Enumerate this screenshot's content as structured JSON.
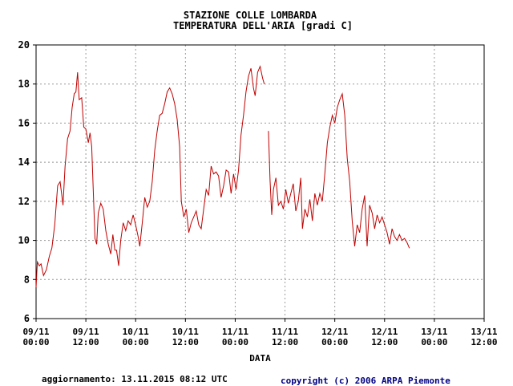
{
  "colors": {
    "series": "#c00000",
    "grid": "#999999",
    "axis": "#000000",
    "footer_right": "#000080"
  },
  "footer": {
    "updated": "aggiornamento: 13.11.2015 08:12 UTC",
    "copyright": "copyright (c) 2006 ARPA Piemonte"
  },
  "chart_data": {
    "type": "line",
    "title": "STAZIONE COLLE LOMBARDA",
    "subtitle": "TEMPERATURA DELL'ARIA [gradi C]",
    "xlabel": "DATA",
    "ylabel": "",
    "ylim": [
      6,
      20
    ],
    "yticks": [
      6,
      8,
      10,
      12,
      14,
      16,
      18,
      20
    ],
    "xlim": [
      0,
      108
    ],
    "xticks": [
      {
        "x": 0,
        "line1": "09/11",
        "line2": "00:00"
      },
      {
        "x": 12,
        "line1": "09/11",
        "line2": "12:00"
      },
      {
        "x": 24,
        "line1": "10/11",
        "line2": "00:00"
      },
      {
        "x": 36,
        "line1": "10/11",
        "line2": "12:00"
      },
      {
        "x": 48,
        "line1": "11/11",
        "line2": "00:00"
      },
      {
        "x": 60,
        "line1": "11/11",
        "line2": "12:00"
      },
      {
        "x": 72,
        "line1": "12/11",
        "line2": "00:00"
      },
      {
        "x": 84,
        "line1": "12/11",
        "line2": "12:00"
      },
      {
        "x": 96,
        "line1": "13/11",
        "line2": "00:00"
      },
      {
        "x": 108,
        "line1": "13/11",
        "line2": "12:00"
      }
    ],
    "grid": true,
    "x_unit": "hours from 09/11 00:00",
    "segments": [
      [
        [
          0,
          7.6
        ],
        [
          0.3,
          8.9
        ],
        [
          0.8,
          8.7
        ],
        [
          1.2,
          8.8
        ],
        [
          1.8,
          8.2
        ],
        [
          2.5,
          8.5
        ],
        [
          3.2,
          9.2
        ],
        [
          3.8,
          9.6
        ],
        [
          4.5,
          10.8
        ],
        [
          5.2,
          12.8
        ],
        [
          5.8,
          13.0
        ],
        [
          6.5,
          11.8
        ],
        [
          7.0,
          13.8
        ],
        [
          7.6,
          15.2
        ],
        [
          8.2,
          15.6
        ],
        [
          8.7,
          16.8
        ],
        [
          9.2,
          17.5
        ],
        [
          9.6,
          17.6
        ],
        [
          10.0,
          18.6
        ],
        [
          10.4,
          17.2
        ],
        [
          11.0,
          17.3
        ],
        [
          11.5,
          15.8
        ],
        [
          12.0,
          15.7
        ],
        [
          12.6,
          15.0
        ],
        [
          13.0,
          15.5
        ],
        [
          13.4,
          14.8
        ],
        [
          13.8,
          12.5
        ],
        [
          14.2,
          10.1
        ],
        [
          14.6,
          9.8
        ],
        [
          15.0,
          11.4
        ],
        [
          15.6,
          11.9
        ],
        [
          16.2,
          11.6
        ],
        [
          16.8,
          10.5
        ],
        [
          17.4,
          9.8
        ],
        [
          18.0,
          9.3
        ],
        [
          18.5,
          10.3
        ],
        [
          19.0,
          9.5
        ],
        [
          19.4,
          9.5
        ],
        [
          19.9,
          8.7
        ],
        [
          20.4,
          10.0
        ],
        [
          21.0,
          10.9
        ],
        [
          21.6,
          10.5
        ],
        [
          22.2,
          11.0
        ],
        [
          22.8,
          10.8
        ],
        [
          23.4,
          11.3
        ],
        [
          24.0,
          10.8
        ],
        [
          24.6,
          10.2
        ],
        [
          25.0,
          9.7
        ],
        [
          25.6,
          10.9
        ],
        [
          26.2,
          12.2
        ],
        [
          26.8,
          11.7
        ],
        [
          27.4,
          12.0
        ],
        [
          28.0,
          13.0
        ],
        [
          28.6,
          14.6
        ],
        [
          29.2,
          15.6
        ],
        [
          29.8,
          16.4
        ],
        [
          30.4,
          16.5
        ],
        [
          31.0,
          17.0
        ],
        [
          31.6,
          17.6
        ],
        [
          32.2,
          17.8
        ],
        [
          32.8,
          17.5
        ],
        [
          33.4,
          17.0
        ],
        [
          34.0,
          16.2
        ],
        [
          34.6,
          14.8
        ],
        [
          35.0,
          12.0
        ],
        [
          35.6,
          11.2
        ],
        [
          36.2,
          11.6
        ],
        [
          36.8,
          10.4
        ],
        [
          37.4,
          10.9
        ],
        [
          38.0,
          11.2
        ],
        [
          38.6,
          11.5
        ],
        [
          39.2,
          10.8
        ],
        [
          39.8,
          10.6
        ],
        [
          40.4,
          11.6
        ],
        [
          41.0,
          12.6
        ],
        [
          41.6,
          12.3
        ],
        [
          42.2,
          13.8
        ],
        [
          42.8,
          13.4
        ],
        [
          43.4,
          13.5
        ],
        [
          44.0,
          13.3
        ],
        [
          44.6,
          12.2
        ],
        [
          45.2,
          12.8
        ],
        [
          45.8,
          13.6
        ],
        [
          46.4,
          13.5
        ],
        [
          47.0,
          12.4
        ],
        [
          47.6,
          13.4
        ],
        [
          48.2,
          12.6
        ],
        [
          48.8,
          13.6
        ],
        [
          49.4,
          15.4
        ],
        [
          50.0,
          16.4
        ],
        [
          50.6,
          17.6
        ],
        [
          51.2,
          18.4
        ],
        [
          51.8,
          18.8
        ],
        [
          52.4,
          17.8
        ],
        [
          52.8,
          17.4
        ],
        [
          53.4,
          18.6
        ],
        [
          54.0,
          18.9
        ],
        [
          54.6,
          18.3
        ],
        [
          55.0,
          18.0
        ]
      ],
      [
        [
          56.0,
          15.6
        ],
        [
          56.4,
          13.1
        ],
        [
          56.8,
          11.3
        ],
        [
          57.2,
          12.6
        ],
        [
          57.8,
          13.2
        ],
        [
          58.4,
          11.8
        ],
        [
          59.0,
          12.0
        ],
        [
          59.6,
          11.6
        ],
        [
          60.2,
          12.6
        ],
        [
          60.8,
          11.9
        ],
        [
          61.4,
          12.4
        ],
        [
          62.0,
          12.9
        ],
        [
          62.6,
          11.5
        ],
        [
          63.2,
          12.0
        ],
        [
          63.8,
          13.2
        ],
        [
          64.2,
          10.6
        ],
        [
          64.8,
          11.6
        ],
        [
          65.4,
          11.2
        ],
        [
          66.0,
          12.1
        ],
        [
          66.6,
          11.0
        ],
        [
          67.2,
          12.4
        ],
        [
          67.8,
          11.8
        ],
        [
          68.4,
          12.4
        ],
        [
          69.0,
          12.0
        ],
        [
          69.6,
          13.4
        ],
        [
          70.2,
          15.0
        ],
        [
          70.8,
          15.8
        ],
        [
          71.4,
          16.4
        ],
        [
          72.0,
          16.0
        ],
        [
          72.6,
          16.8
        ],
        [
          73.2,
          17.2
        ],
        [
          73.8,
          17.5
        ],
        [
          74.4,
          16.4
        ],
        [
          75.0,
          14.2
        ],
        [
          75.6,
          13.0
        ],
        [
          76.2,
          11.0
        ],
        [
          76.8,
          9.7
        ],
        [
          77.4,
          10.8
        ],
        [
          78.0,
          10.4
        ],
        [
          78.6,
          11.6
        ],
        [
          79.2,
          12.3
        ],
        [
          79.8,
          9.7
        ],
        [
          80.4,
          11.8
        ],
        [
          81.0,
          11.4
        ],
        [
          81.6,
          10.6
        ],
        [
          82.2,
          11.3
        ],
        [
          82.8,
          10.9
        ],
        [
          83.4,
          11.2
        ],
        [
          84.0,
          10.8
        ],
        [
          84.6,
          10.4
        ],
        [
          85.2,
          9.8
        ],
        [
          85.8,
          10.6
        ],
        [
          86.4,
          10.2
        ],
        [
          87.0,
          10.0
        ],
        [
          87.6,
          10.3
        ],
        [
          88.2,
          10.0
        ],
        [
          88.8,
          10.1
        ],
        [
          89.4,
          9.9
        ],
        [
          90.0,
          9.6
        ]
      ]
    ]
  }
}
